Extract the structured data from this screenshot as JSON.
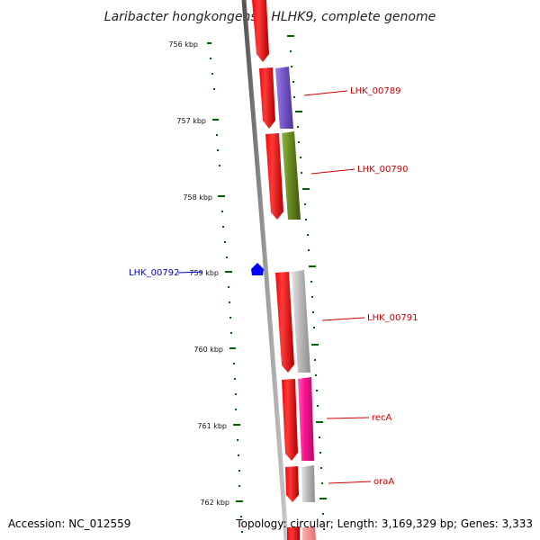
{
  "title": "Laribacter hongkongensis HLHK9, complete genome",
  "footer": {
    "accession": "Accession: NC_012559",
    "topology": "Topology: circular; Length: 3,169,329 bp; Genes: 3,333"
  },
  "ticks": [
    "756 kbp",
    "757 kbp",
    "758 kbp",
    "759 kbp",
    "760 kbp",
    "761 kbp",
    "762 kbp"
  ],
  "labels": {
    "lhk00789": "LHK_00789",
    "lhk00790": "LHK_00790",
    "lhk00791": "LHK_00791",
    "recA": "recA",
    "oraA": "oraA",
    "lhk00792": "LHK_00792"
  },
  "colors": {
    "cds": "#ff0000",
    "lhk00789": "#7a5acd",
    "lhk00790": "#6b8e23",
    "lhk00791": "#b8b8b8",
    "recA": "#ff1493",
    "oraA": "#b8b8b8",
    "tick": "#006400",
    "backbone": "#777777",
    "feature_marker": "#0000ff"
  }
}
